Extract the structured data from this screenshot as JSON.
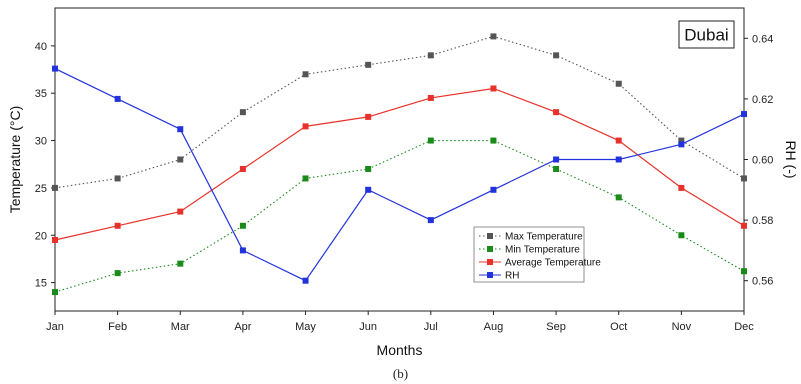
{
  "chart_data": {
    "type": "line",
    "categories": [
      "Jan",
      "Feb",
      "Mar",
      "Apr",
      "May",
      "Jun",
      "Jul",
      "Aug",
      "Sep",
      "Oct",
      "Nov",
      "Dec"
    ],
    "xlabel": "Months",
    "ylabel_left": "Temperature (°C)",
    "ylabel_right": "RH (-)",
    "ylim_left": [
      12,
      44
    ],
    "yticks_left": [
      15,
      20,
      25,
      30,
      35,
      40
    ],
    "ylim_right": [
      0.55,
      0.65
    ],
    "yticks_right": [
      0.56,
      0.58,
      0.6,
      0.62,
      0.64
    ],
    "legend_placement": "lower-center-right",
    "annotation": "Dubai",
    "caption": "(b)",
    "series": [
      {
        "name": "Max Temperature",
        "axis": "left",
        "style": "dotted",
        "color": "#555555",
        "values": [
          25,
          26,
          28,
          33,
          37,
          38,
          39,
          41,
          39,
          36,
          30,
          26
        ]
      },
      {
        "name": "Min Temperature",
        "axis": "left",
        "style": "dotted",
        "color": "#1a8a1a",
        "values": [
          14,
          16,
          17,
          21,
          26,
          27,
          30,
          30,
          27,
          24,
          20,
          16.2
        ]
      },
      {
        "name": "Average Temperature",
        "axis": "left",
        "style": "solid",
        "color": "#e8312a",
        "values": [
          19.5,
          21,
          22.5,
          27,
          31.5,
          32.5,
          34.5,
          35.5,
          33,
          30,
          25,
          21
        ]
      },
      {
        "name": "RH",
        "axis": "right",
        "style": "solid",
        "color": "#2233dd",
        "values": [
          0.63,
          0.62,
          0.61,
          0.57,
          0.56,
          0.59,
          0.58,
          0.59,
          0.6,
          0.6,
          0.605,
          0.615
        ]
      }
    ]
  }
}
